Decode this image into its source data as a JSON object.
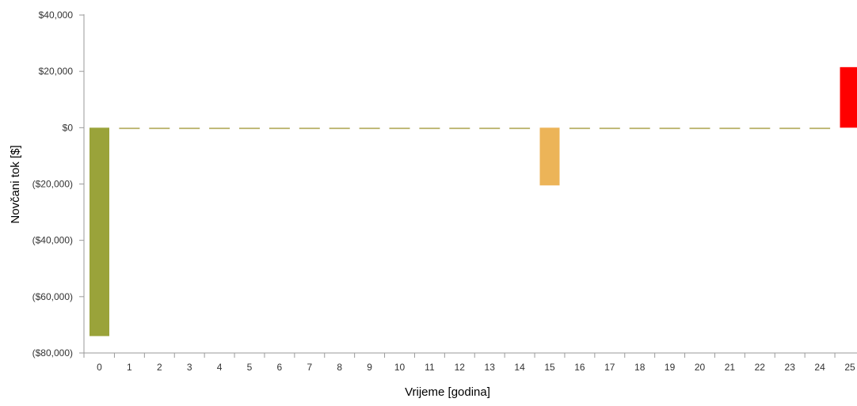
{
  "chart_data": {
    "type": "bar",
    "xlabel": "Vrijeme [godina]",
    "ylabel": "Novčani tok [$]",
    "ylim": [
      -80000,
      40000
    ],
    "yticks": [
      40000,
      20000,
      0,
      -20000,
      -40000,
      -60000,
      -80000
    ],
    "ytick_labels": [
      "$40,000",
      "$20,000",
      "$0",
      "($20,000)",
      "($40,000)",
      "($60,000)",
      "($80,000)"
    ],
    "categories": [
      "0",
      "1",
      "2",
      "3",
      "4",
      "5",
      "6",
      "7",
      "8",
      "9",
      "10",
      "11",
      "12",
      "13",
      "14",
      "15",
      "16",
      "17",
      "18",
      "19",
      "20",
      "21",
      "22",
      "23",
      "24",
      "25"
    ],
    "values": [
      -74000,
      -500,
      -500,
      -500,
      -500,
      -500,
      -500,
      -500,
      -500,
      -500,
      -500,
      -500,
      -500,
      -500,
      -500,
      -20500,
      -500,
      -500,
      -500,
      -500,
      -500,
      -500,
      -500,
      -500,
      -500,
      21500
    ],
    "bar_colors": {
      "0": "#9aa33a",
      "15": "#ecb458",
      "25": "#ff0000",
      "default": "#b7b066"
    },
    "grid": false,
    "legend": "none"
  }
}
